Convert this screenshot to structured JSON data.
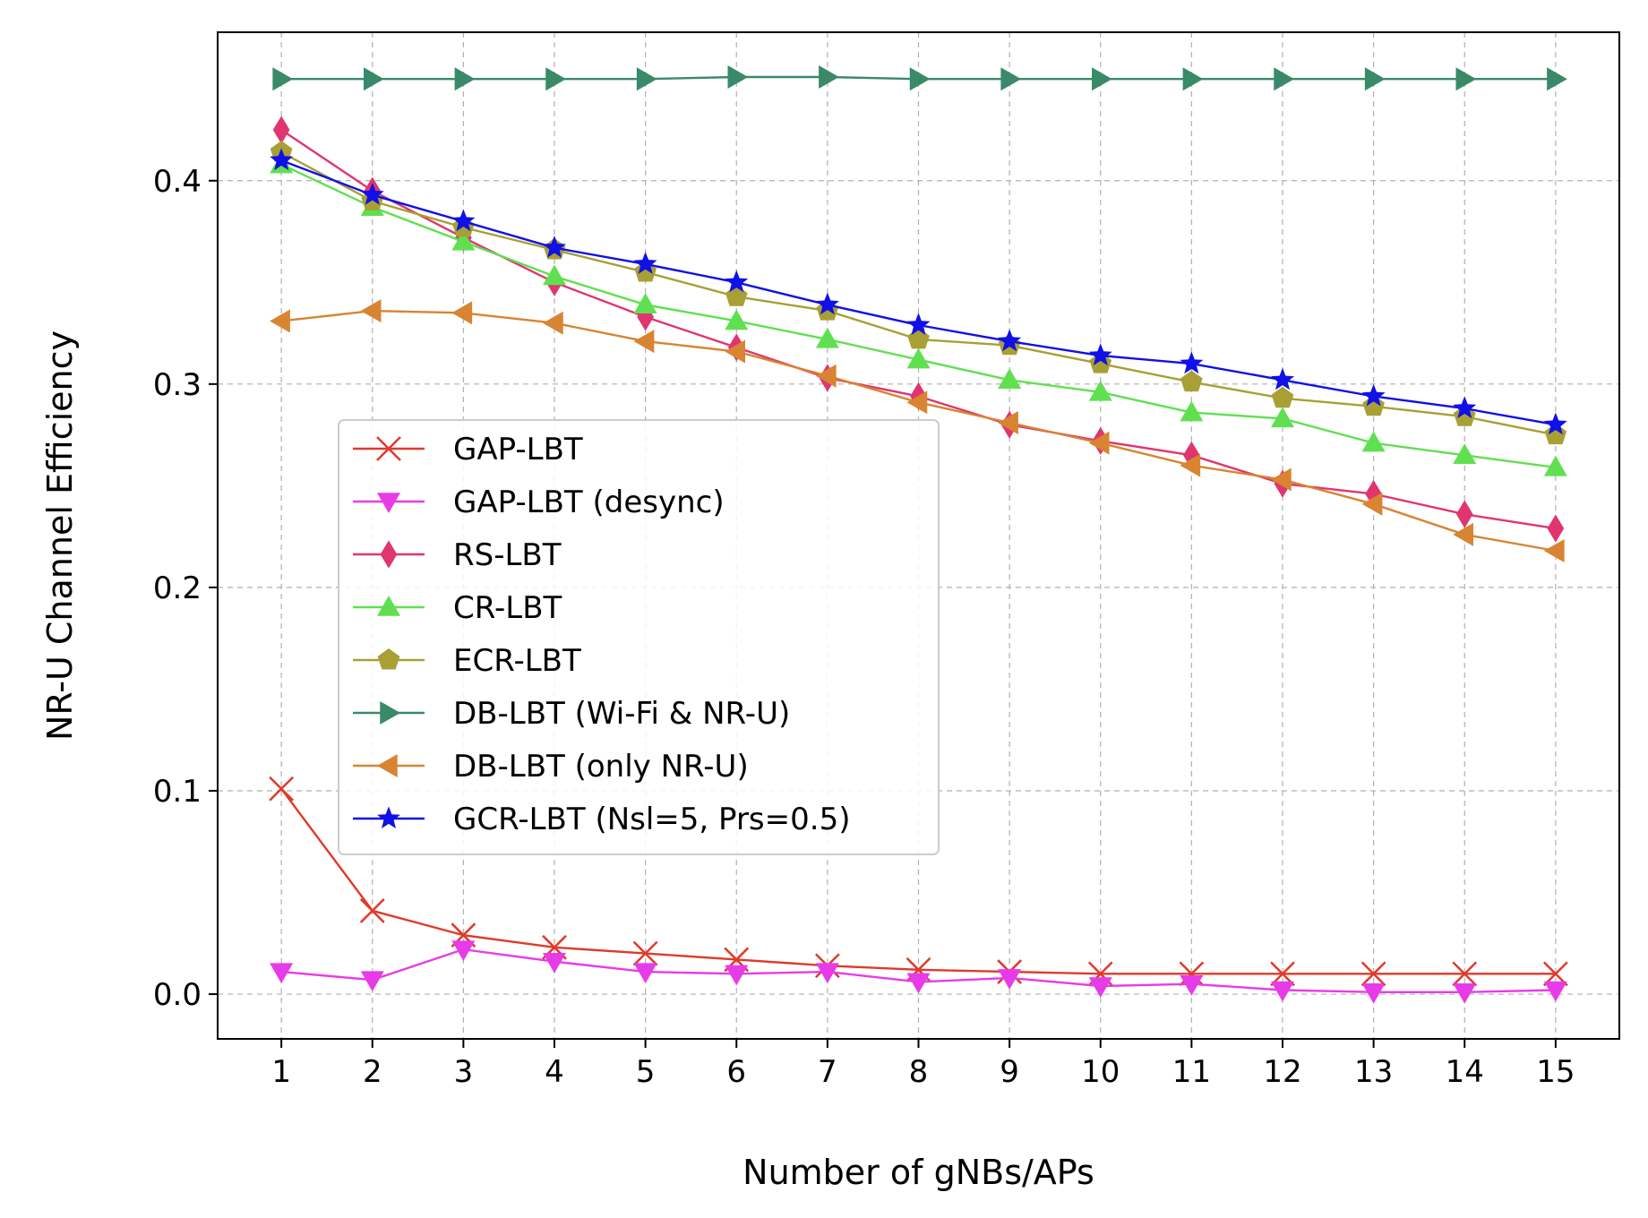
{
  "chart_data": {
    "type": "line",
    "xlabel": "Number of gNBs/APs",
    "ylabel": "NR-U Channel Efficiency",
    "x": [
      1,
      2,
      3,
      4,
      5,
      6,
      7,
      8,
      9,
      10,
      11,
      12,
      13,
      14,
      15
    ],
    "xlim": [
      0.3,
      15.7
    ],
    "ylim": [
      -0.022,
      0.473
    ],
    "yticks": [
      0.0,
      0.1,
      0.2,
      0.3,
      0.4
    ],
    "ytick_labels": [
      "0.0",
      "0.1",
      "0.2",
      "0.3",
      "0.4"
    ],
    "xtick_labels": [
      "1",
      "2",
      "3",
      "4",
      "5",
      "6",
      "7",
      "8",
      "9",
      "10",
      "11",
      "12",
      "13",
      "14",
      "15"
    ],
    "grid": true,
    "legend_position": "center-left",
    "series": [
      {
        "name": "GAP-LBT",
        "color": "#e03a2a",
        "marker": "x",
        "values": [
          0.101,
          0.041,
          0.029,
          0.023,
          0.02,
          0.017,
          0.014,
          0.012,
          0.011,
          0.01,
          0.01,
          0.01,
          0.01,
          0.01,
          0.01
        ]
      },
      {
        "name": "GAP-LBT (desync)",
        "color": "#e83be8",
        "marker": "triangle-down",
        "values": [
          0.011,
          0.007,
          0.022,
          0.016,
          0.011,
          0.01,
          0.011,
          0.006,
          0.008,
          0.004,
          0.005,
          0.002,
          0.001,
          0.001,
          0.002
        ]
      },
      {
        "name": "RS-LBT",
        "color": "#e03570",
        "marker": "diamond",
        "values": [
          0.425,
          0.395,
          0.372,
          0.35,
          0.333,
          0.318,
          0.303,
          0.294,
          0.28,
          0.272,
          0.265,
          0.251,
          0.246,
          0.236,
          0.229
        ]
      },
      {
        "name": "CR-LBT",
        "color": "#60e050",
        "marker": "triangle-up",
        "values": [
          0.408,
          0.387,
          0.37,
          0.353,
          0.339,
          0.331,
          0.322,
          0.312,
          0.302,
          0.296,
          0.286,
          0.283,
          0.271,
          0.265,
          0.259
        ]
      },
      {
        "name": "ECR-LBT",
        "color": "#a8a035",
        "marker": "pentagon",
        "values": [
          0.414,
          0.39,
          0.377,
          0.366,
          0.355,
          0.343,
          0.336,
          0.322,
          0.319,
          0.31,
          0.301,
          0.293,
          0.289,
          0.284,
          0.275
        ]
      },
      {
        "name": "DB-LBT (Wi-Fi & NR-U)",
        "color": "#3a8a6a",
        "marker": "triangle-right",
        "values": [
          0.45,
          0.45,
          0.45,
          0.45,
          0.45,
          0.451,
          0.451,
          0.45,
          0.45,
          0.45,
          0.45,
          0.45,
          0.45,
          0.45,
          0.45
        ]
      },
      {
        "name": "DB-LBT (only NR-U)",
        "color": "#d88432",
        "marker": "triangle-left",
        "values": [
          0.331,
          0.336,
          0.335,
          0.33,
          0.321,
          0.316,
          0.304,
          0.291,
          0.281,
          0.271,
          0.26,
          0.253,
          0.241,
          0.226,
          0.218
        ]
      },
      {
        "name": "GCR-LBT (Nsl=5, Prs=0.5)",
        "color": "#1010e8",
        "marker": "star",
        "values": [
          0.41,
          0.393,
          0.38,
          0.367,
          0.359,
          0.35,
          0.339,
          0.329,
          0.321,
          0.314,
          0.31,
          0.302,
          0.294,
          0.288,
          0.28
        ]
      }
    ]
  }
}
